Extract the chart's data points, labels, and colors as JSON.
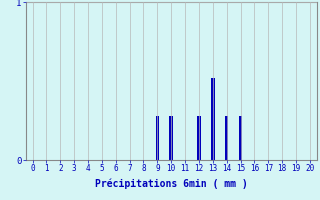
{
  "xlabel": "Précipitations 6min ( mm )",
  "background_color": "#d5f5f5",
  "bar_color": "#0000bb",
  "grid_color": "#b8b8b8",
  "axis_color": "#888888",
  "tick_color": "#0000bb",
  "label_color": "#0000bb",
  "ylim": [
    0,
    1
  ],
  "xlim": [
    -0.5,
    20.5
  ],
  "yticks": [
    0,
    1
  ],
  "xticks": [
    0,
    1,
    2,
    3,
    4,
    5,
    6,
    7,
    8,
    9,
    10,
    11,
    12,
    13,
    14,
    15,
    16,
    17,
    18,
    19,
    20
  ],
  "values": [
    0,
    0,
    0,
    0,
    0,
    0,
    0,
    0,
    0,
    0.28,
    0.28,
    0,
    0.28,
    0.52,
    0.28,
    0.28,
    0,
    0,
    0,
    0,
    0
  ],
  "n_bars": 21
}
